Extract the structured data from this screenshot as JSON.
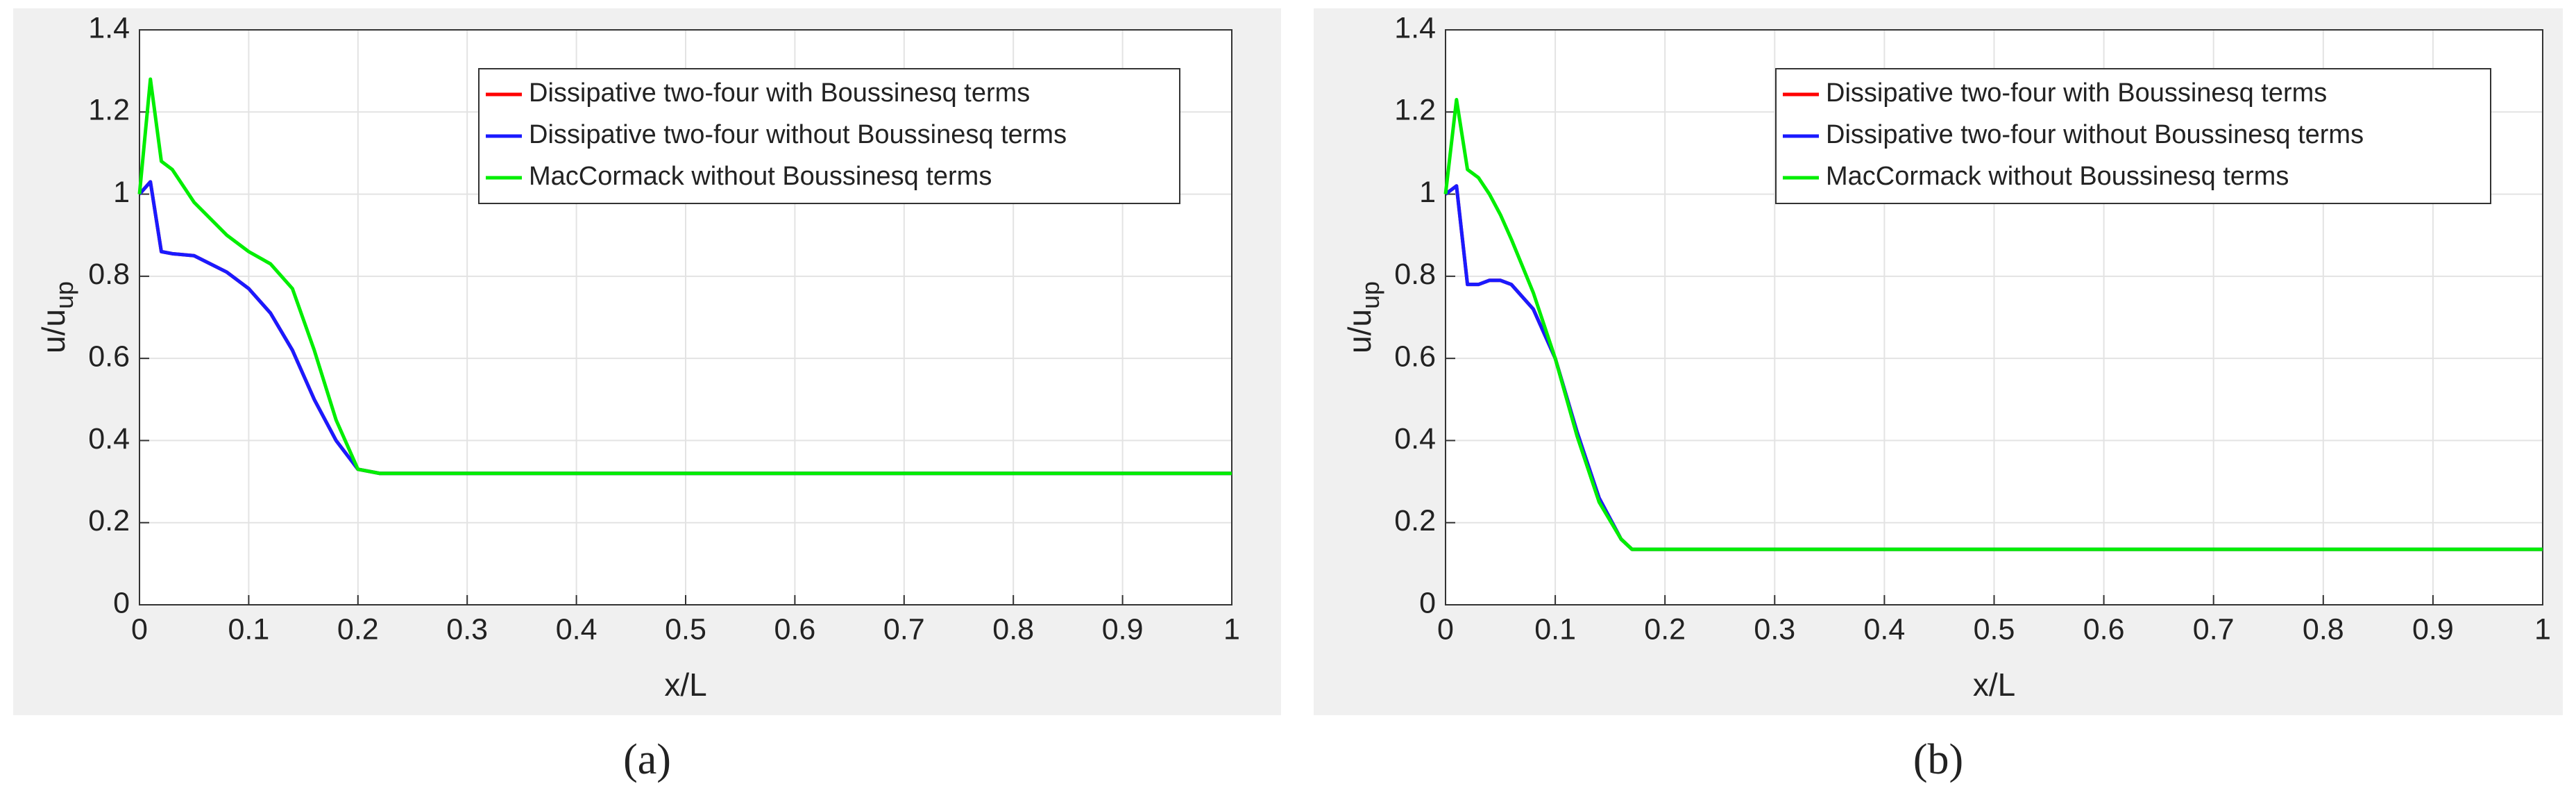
{
  "chart_data": [
    {
      "type": "line",
      "caption": "(a)",
      "xlabel": "x/L",
      "ylabel": "u/u",
      "ylabel_subscript": "up",
      "x": [
        0,
        0.01,
        0.02,
        0.03,
        0.05,
        0.08,
        0.1,
        0.12,
        0.14,
        0.16,
        0.18,
        0.2,
        0.22,
        0.25,
        0.5,
        1
      ],
      "series": [
        {
          "name": "Dissipative two-four with Boussinesq terms",
          "color": "#ff0000",
          "values": [
            1.0,
            1.03,
            0.86,
            0.855,
            0.85,
            0.81,
            0.77,
            0.71,
            0.62,
            0.5,
            0.4,
            0.33,
            0.32,
            0.32,
            0.32,
            0.32
          ]
        },
        {
          "name": "Dissipative two-four without Boussinesq terms",
          "color": "#1a1aff",
          "values": [
            1.0,
            1.03,
            0.86,
            0.855,
            0.85,
            0.81,
            0.77,
            0.71,
            0.62,
            0.5,
            0.4,
            0.33,
            0.32,
            0.32,
            0.32,
            0.32
          ]
        },
        {
          "name": "MacCormack without Boussinesq terms",
          "color": "#00ee00",
          "values": [
            1.0,
            1.28,
            1.08,
            1.06,
            0.98,
            0.9,
            0.86,
            0.83,
            0.77,
            0.62,
            0.45,
            0.33,
            0.32,
            0.32,
            0.32,
            0.32
          ]
        }
      ],
      "xlim": [
        0,
        1
      ],
      "xticks": [
        0,
        0.1,
        0.2,
        0.3,
        0.4,
        0.5,
        0.6,
        0.7,
        0.8,
        0.9,
        1
      ],
      "ylim": [
        0,
        1.4
      ],
      "yticks": [
        0,
        0.2,
        0.4,
        0.6,
        0.8,
        1,
        1.2,
        1.4
      ],
      "grid": true,
      "legend": "upper right"
    },
    {
      "type": "line",
      "caption": "(b)",
      "xlabel": "x/L",
      "ylabel": "u/u",
      "ylabel_subscript": "up",
      "x": [
        0,
        0.01,
        0.02,
        0.03,
        0.04,
        0.05,
        0.06,
        0.08,
        0.1,
        0.12,
        0.14,
        0.16,
        0.17,
        0.2,
        0.5,
        1
      ],
      "series": [
        {
          "name": "Dissipative two-four with Boussinesq terms",
          "color": "#ff0000",
          "values": [
            1.0,
            1.02,
            0.78,
            0.78,
            0.79,
            0.79,
            0.78,
            0.72,
            0.6,
            0.42,
            0.26,
            0.16,
            0.135,
            0.135,
            0.135,
            0.135
          ]
        },
        {
          "name": "Dissipative two-four without Boussinesq terms",
          "color": "#1a1aff",
          "values": [
            1.0,
            1.02,
            0.78,
            0.78,
            0.79,
            0.79,
            0.78,
            0.72,
            0.6,
            0.42,
            0.26,
            0.16,
            0.135,
            0.135,
            0.135,
            0.135
          ]
        },
        {
          "name": "MacCormack without Boussinesq terms",
          "color": "#00ee00",
          "values": [
            1.0,
            1.23,
            1.06,
            1.04,
            1.0,
            0.95,
            0.89,
            0.76,
            0.6,
            0.41,
            0.25,
            0.16,
            0.135,
            0.135,
            0.135,
            0.135
          ]
        }
      ],
      "xlim": [
        0,
        1
      ],
      "xticks": [
        0,
        0.1,
        0.2,
        0.3,
        0.4,
        0.5,
        0.6,
        0.7,
        0.8,
        0.9,
        1
      ],
      "ylim": [
        0,
        1.4
      ],
      "yticks": [
        0,
        0.2,
        0.4,
        0.6,
        0.8,
        1,
        1.2,
        1.4
      ],
      "grid": true,
      "legend": "upper right"
    }
  ]
}
